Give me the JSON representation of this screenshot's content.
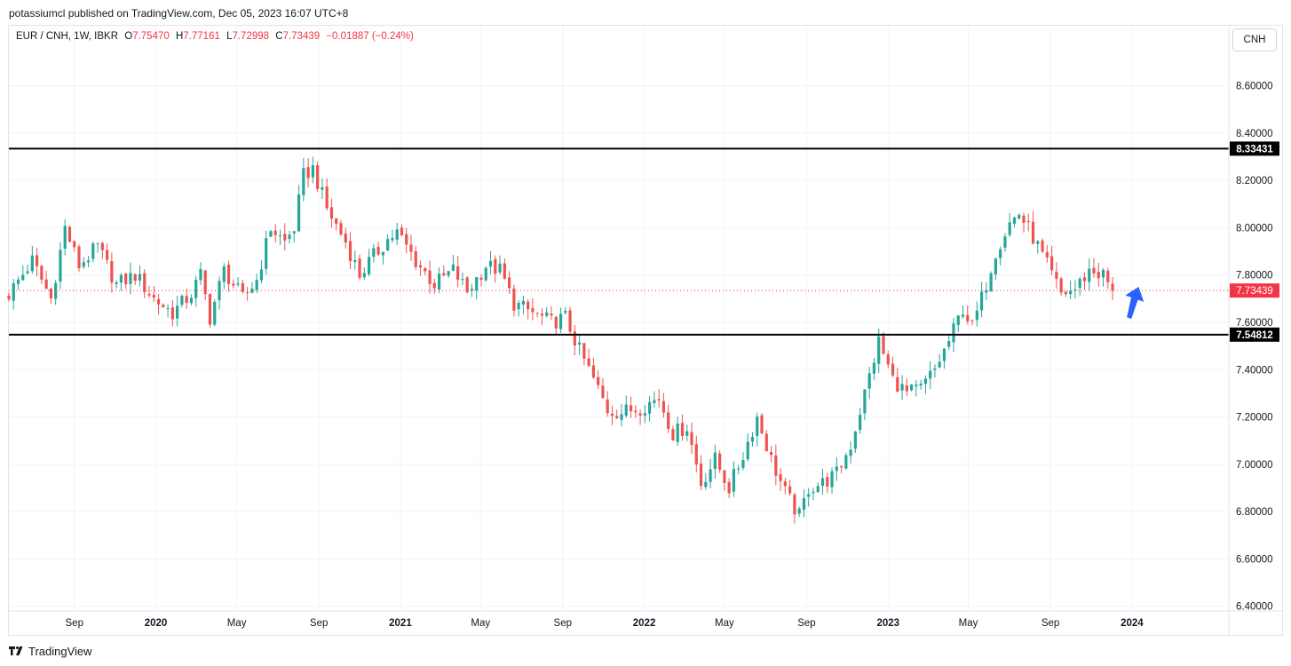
{
  "header": {
    "publisher_line": "potassiumcl published on TradingView.com, Dec 05, 2023 16:07 UTC+8"
  },
  "legend": {
    "symbol": "EUR / CNH, 1W, IBKR",
    "open_label": "O",
    "open": "7.75470",
    "high_label": "H",
    "high": "7.77161",
    "low_label": "L",
    "low": "7.72998",
    "close_label": "C",
    "close": "7.73439",
    "change": "−0.01887 (−0.24%)"
  },
  "currency_button": "CNH",
  "footer": {
    "brand": "TradingView"
  },
  "colors": {
    "up": "#26a69a",
    "down": "#ef5350",
    "level_line": "#000000",
    "arrow": "#2962ff",
    "last_price": "#f23645"
  },
  "chart_data": {
    "type": "candlestick",
    "interval": "1W",
    "y_ticks": [
      "8.60000",
      "8.40000",
      "8.20000",
      "8.00000",
      "7.80000",
      "7.60000",
      "7.40000",
      "7.20000",
      "7.00000",
      "6.80000",
      "6.60000",
      "6.40000"
    ],
    "ylim": [
      6.38,
      8.85
    ],
    "x_ticks": [
      {
        "label": "Sep",
        "date": "2019-09-01"
      },
      {
        "label": "2020",
        "date": "2020-01-01"
      },
      {
        "label": "May",
        "date": "2020-05-01"
      },
      {
        "label": "Sep",
        "date": "2020-09-01"
      },
      {
        "label": "2021",
        "date": "2021-01-01"
      },
      {
        "label": "May",
        "date": "2021-05-01"
      },
      {
        "label": "Sep",
        "date": "2021-09-01"
      },
      {
        "label": "2022",
        "date": "2022-01-01"
      },
      {
        "label": "May",
        "date": "2022-05-01"
      },
      {
        "label": "Sep",
        "date": "2022-09-01"
      },
      {
        "label": "2023",
        "date": "2023-01-01"
      },
      {
        "label": "May",
        "date": "2023-05-01"
      },
      {
        "label": "Sep",
        "date": "2023-09-01"
      },
      {
        "label": "2024",
        "date": "2024-01-01"
      }
    ],
    "xlim": [
      "2019-05-26",
      "2024-05-25"
    ],
    "horizontal_levels": [
      {
        "value": 8.33431,
        "label": "8.33431"
      },
      {
        "value": 7.54812,
        "label": "7.54812"
      }
    ],
    "last_price": {
      "value": 7.73439,
      "label": "7.73439"
    },
    "arrow": {
      "from_date": "2023-12-26",
      "from_value": 7.62,
      "to_date": "2024-01-11",
      "to_value": 7.75
    },
    "close_anchors": [
      [
        "2019-05-26",
        7.72
      ],
      [
        "2019-06-30",
        7.86
      ],
      [
        "2019-07-28",
        7.7
      ],
      [
        "2019-08-18",
        8.0
      ],
      [
        "2019-09-08",
        7.84
      ],
      [
        "2019-10-06",
        7.92
      ],
      [
        "2019-11-03",
        7.76
      ],
      [
        "2019-12-01",
        7.8
      ],
      [
        "2019-12-29",
        7.7
      ],
      [
        "2020-01-26",
        7.64
      ],
      [
        "2020-02-23",
        7.72
      ],
      [
        "2020-03-08",
        7.8
      ],
      [
        "2020-03-22",
        7.62
      ],
      [
        "2020-04-12",
        7.82
      ],
      [
        "2020-05-10",
        7.7
      ],
      [
        "2020-05-31",
        7.78
      ],
      [
        "2020-06-21",
        8.0
      ],
      [
        "2020-07-12",
        7.94
      ],
      [
        "2020-07-26",
        8.0
      ],
      [
        "2020-08-09",
        8.22
      ],
      [
        "2020-08-23",
        8.25
      ],
      [
        "2020-09-13",
        8.08
      ],
      [
        "2020-10-11",
        7.94
      ],
      [
        "2020-11-01",
        7.8
      ],
      [
        "2020-11-22",
        7.88
      ],
      [
        "2020-12-13",
        7.95
      ],
      [
        "2020-12-27",
        7.98
      ],
      [
        "2021-01-24",
        7.86
      ],
      [
        "2021-02-21",
        7.76
      ],
      [
        "2021-03-21",
        7.82
      ],
      [
        "2021-04-11",
        7.73
      ],
      [
        "2021-05-09",
        7.84
      ],
      [
        "2021-05-30",
        7.82
      ],
      [
        "2021-06-20",
        7.68
      ],
      [
        "2021-07-18",
        7.64
      ],
      [
        "2021-08-15",
        7.6
      ],
      [
        "2021-09-05",
        7.62
      ],
      [
        "2021-09-26",
        7.48
      ],
      [
        "2021-10-17",
        7.36
      ],
      [
        "2021-11-07",
        7.23
      ],
      [
        "2021-11-28",
        7.22
      ],
      [
        "2021-12-26",
        7.24
      ],
      [
        "2022-01-23",
        7.28
      ],
      [
        "2022-02-13",
        7.13
      ],
      [
        "2022-03-06",
        7.16
      ],
      [
        "2022-03-27",
        6.92
      ],
      [
        "2022-04-17",
        7.02
      ],
      [
        "2022-05-08",
        6.9
      ],
      [
        "2022-05-29",
        7.04
      ],
      [
        "2022-06-19",
        7.2
      ],
      [
        "2022-07-10",
        7.02
      ],
      [
        "2022-07-31",
        6.88
      ],
      [
        "2022-08-21",
        6.78
      ],
      [
        "2022-09-04",
        6.9
      ],
      [
        "2022-09-25",
        6.92
      ],
      [
        "2022-10-16",
        6.96
      ],
      [
        "2022-11-06",
        7.08
      ],
      [
        "2022-11-27",
        7.3
      ],
      [
        "2022-12-18",
        7.52
      ],
      [
        "2023-01-08",
        7.36
      ],
      [
        "2023-01-29",
        7.3
      ],
      [
        "2023-02-19",
        7.32
      ],
      [
        "2023-03-12",
        7.4
      ],
      [
        "2023-04-02",
        7.52
      ],
      [
        "2023-04-23",
        7.66
      ],
      [
        "2023-05-07",
        7.58
      ],
      [
        "2023-05-21",
        7.7
      ],
      [
        "2023-06-11",
        7.9
      ],
      [
        "2023-07-02",
        8.02
      ],
      [
        "2023-07-16",
        8.06
      ],
      [
        "2023-08-06",
        7.96
      ],
      [
        "2023-08-27",
        7.84
      ],
      [
        "2023-09-17",
        7.72
      ],
      [
        "2023-10-08",
        7.74
      ],
      [
        "2023-10-29",
        7.82
      ],
      [
        "2023-11-19",
        7.8
      ],
      [
        "2023-12-03",
        7.73439
      ]
    ]
  }
}
